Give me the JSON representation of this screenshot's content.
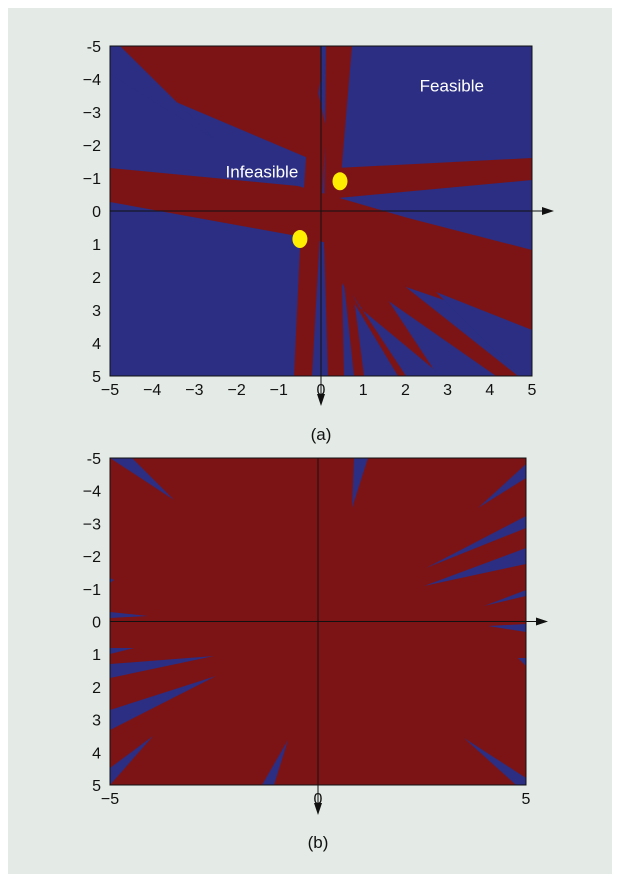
{
  "colors": {
    "background": "#e4ebe6",
    "feasible": "#2b2e82",
    "infeasible": "#7c1416",
    "marker": "#ffee00",
    "axis": "#111111"
  },
  "chart_data": [
    {
      "type": "heatmap",
      "caption": "(a)",
      "xlim": [
        -5,
        5
      ],
      "ylim": [
        -5,
        5
      ],
      "y_axis_direction": "downward",
      "x_ticks": [
        "−5",
        "−4",
        "−3",
        "−2",
        "−1",
        "0",
        "1",
        "2",
        "3",
        "4",
        "5"
      ],
      "y_ticks": [
        "-5",
        "−4",
        "−3",
        "−2",
        "−1",
        "0",
        "1",
        "2",
        "3",
        "4",
        "5"
      ],
      "regions": [
        {
          "label": "Infeasible",
          "color": "#7c1416",
          "label_at": [
            -1.4,
            -1.2
          ]
        },
        {
          "label": "Feasible",
          "color": "#2b2e82",
          "label_at": [
            3.1,
            -3.8
          ]
        }
      ],
      "markers": [
        {
          "x": 0.45,
          "y": -0.9
        },
        {
          "x": -0.5,
          "y": 0.85
        }
      ]
    },
    {
      "type": "heatmap",
      "caption": "(b)",
      "xlim": [
        -5,
        5
      ],
      "ylim": [
        -5,
        5
      ],
      "y_axis_direction": "downward",
      "x_ticks": [
        "−5",
        "0",
        "5"
      ],
      "y_ticks": [
        "-5",
        "−4",
        "−3",
        "−2",
        "−1",
        "0",
        "1",
        "2",
        "3",
        "4",
        "5"
      ],
      "regions": [
        {
          "color": "#7c1416",
          "fill": "dominant"
        },
        {
          "color": "#2b2e82",
          "fill": "thin wedges near edges"
        }
      ]
    }
  ]
}
